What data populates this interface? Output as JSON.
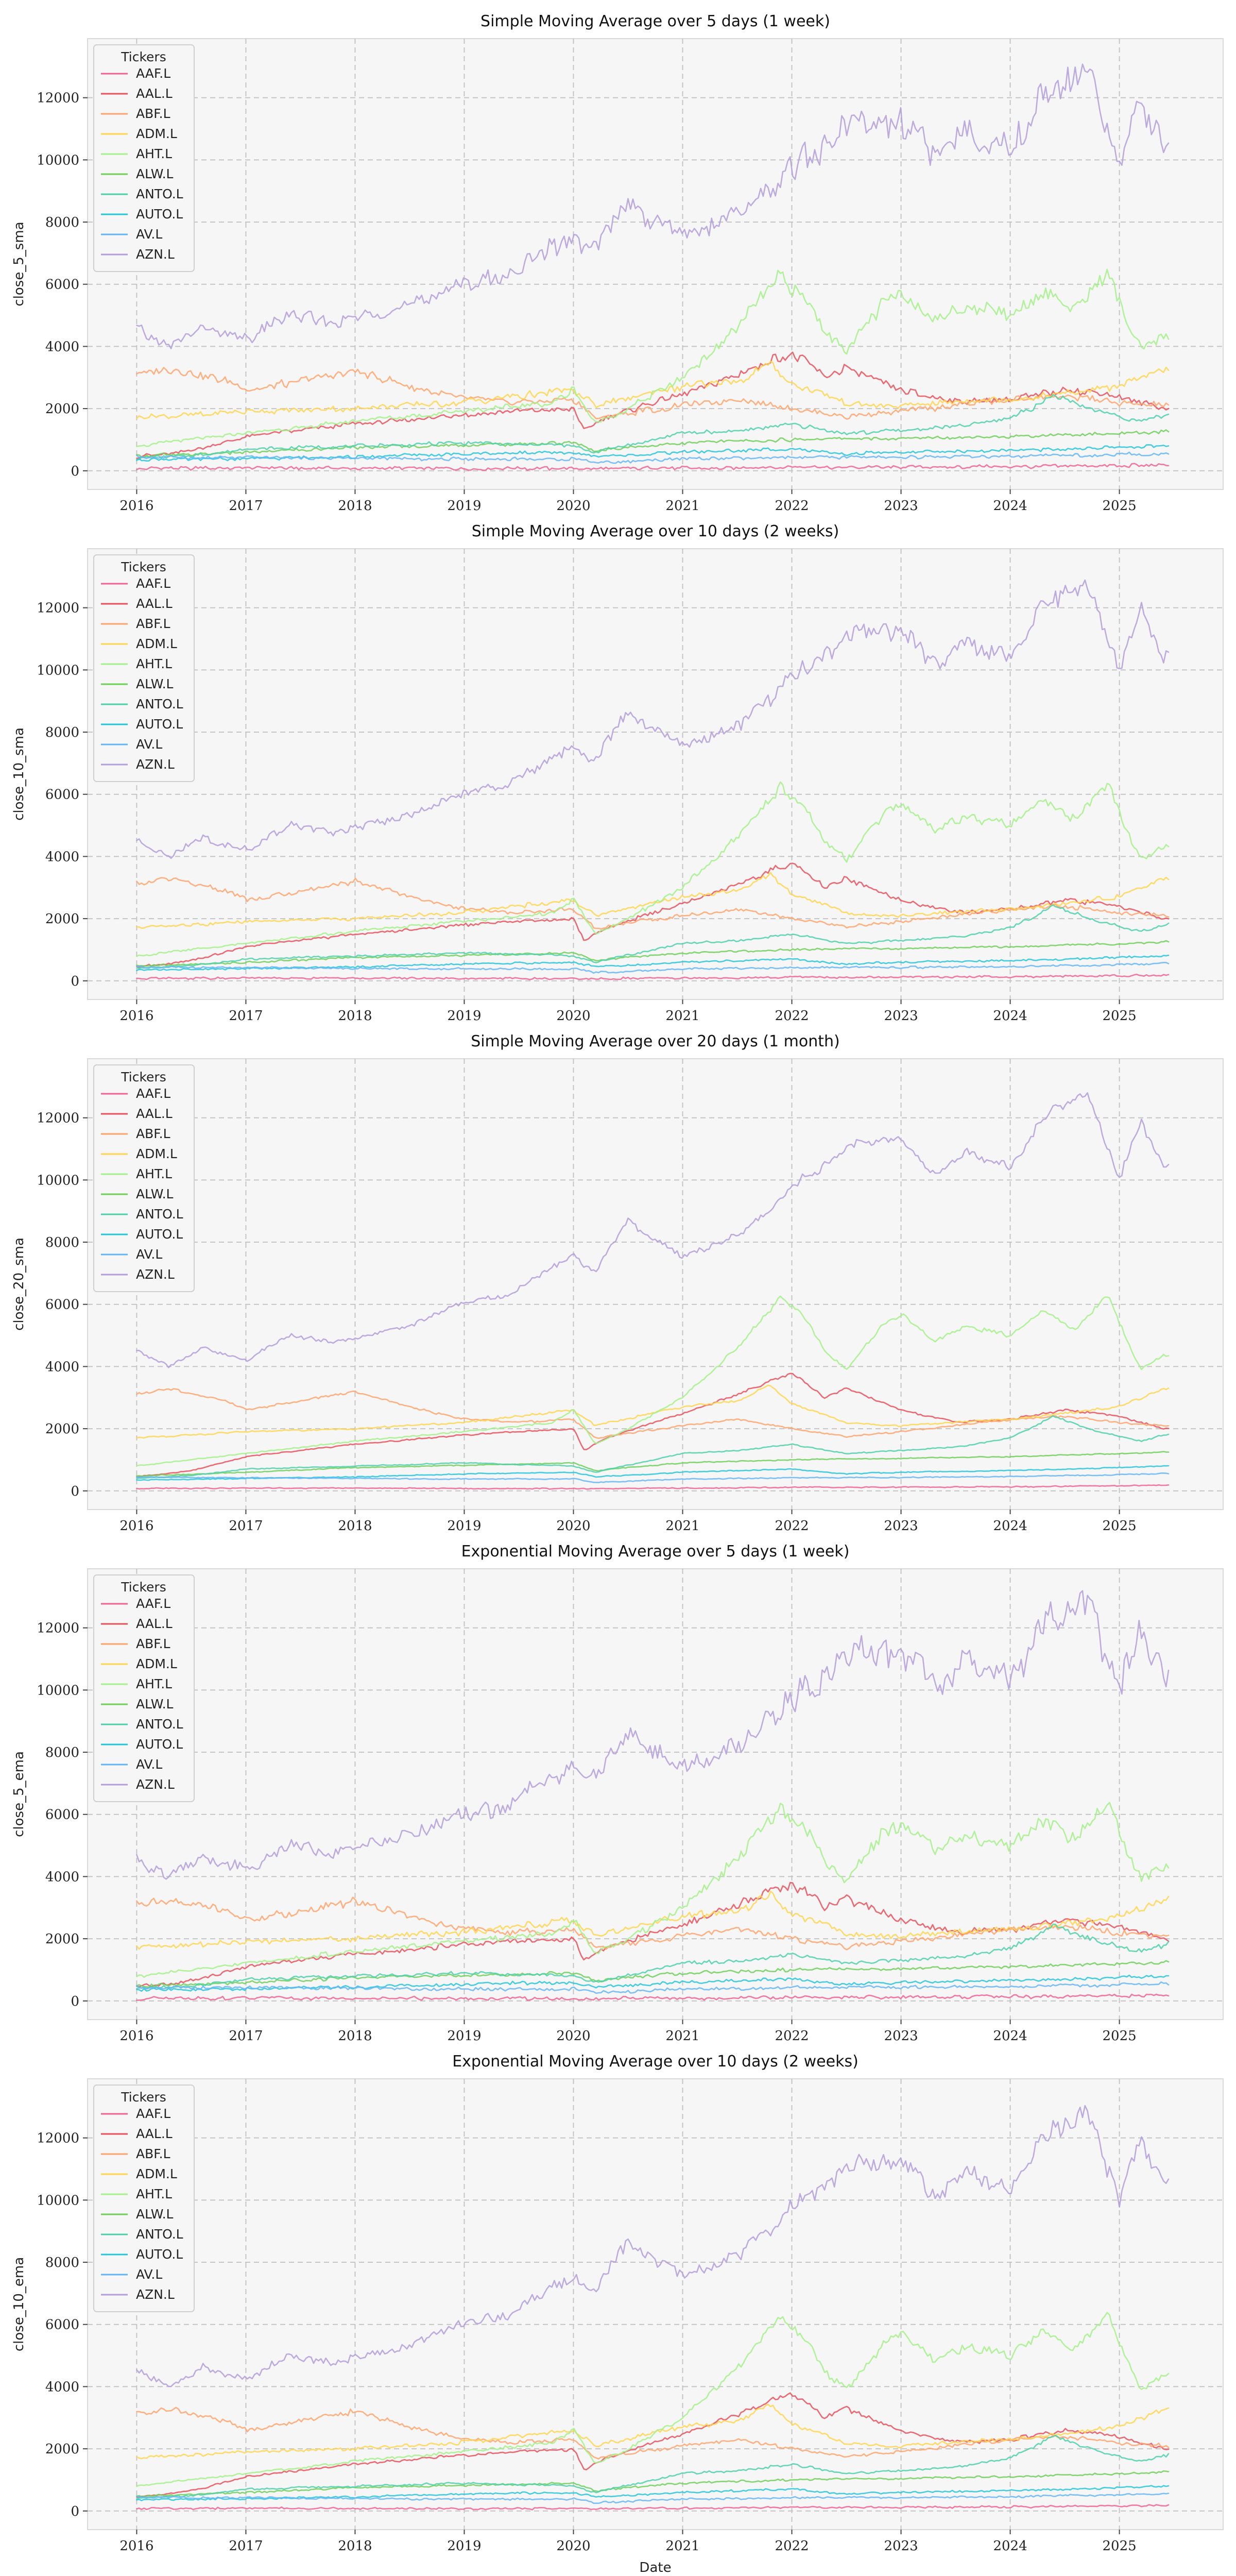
{
  "chart_data": [
    {
      "type": "line",
      "title": "Simple Moving Average over 5 days (1 week)",
      "ylabel": "close_5_sma",
      "xlabel": "",
      "x_ticks": [
        "2016",
        "2017",
        "2018",
        "2019",
        "2020",
        "2021",
        "2022",
        "2023",
        "2024",
        "2025"
      ],
      "y_ticks": [
        "0",
        "2000",
        "4000",
        "6000",
        "8000",
        "10000",
        "12000"
      ],
      "xlim": [
        2015.55,
        2025.95
      ],
      "ylim": [
        -600,
        13900
      ],
      "grid": true,
      "legend_title": "Tickers",
      "legend_position": "upper-left",
      "smoothing": "wiggly"
    },
    {
      "type": "line",
      "title": "Simple Moving Average over 10 days (2 weeks)",
      "ylabel": "close_10_sma",
      "xlabel": "",
      "x_ticks": [
        "2016",
        "2017",
        "2018",
        "2019",
        "2020",
        "2021",
        "2022",
        "2023",
        "2024",
        "2025"
      ],
      "y_ticks": [
        "0",
        "2000",
        "4000",
        "6000",
        "8000",
        "10000",
        "12000"
      ],
      "xlim": [
        2015.55,
        2025.95
      ],
      "ylim": [
        -600,
        13900
      ],
      "grid": true,
      "legend_title": "Tickers",
      "legend_position": "upper-left",
      "smoothing": "medium"
    },
    {
      "type": "line",
      "title": "Simple Moving Average over 20 days (1 month)",
      "ylabel": "close_20_sma",
      "xlabel": "",
      "x_ticks": [
        "2016",
        "2017",
        "2018",
        "2019",
        "2020",
        "2021",
        "2022",
        "2023",
        "2024",
        "2025"
      ],
      "y_ticks": [
        "0",
        "2000",
        "4000",
        "6000",
        "8000",
        "10000",
        "12000"
      ],
      "xlim": [
        2015.55,
        2025.95
      ],
      "ylim": [
        -600,
        13900
      ],
      "grid": true,
      "legend_title": "Tickers",
      "legend_position": "upper-left",
      "smoothing": "smooth"
    },
    {
      "type": "line",
      "title": "Exponential Moving Average over 5 days (1 week)",
      "ylabel": "close_5_ema",
      "xlabel": "",
      "x_ticks": [
        "2016",
        "2017",
        "2018",
        "2019",
        "2020",
        "2021",
        "2022",
        "2023",
        "2024",
        "2025"
      ],
      "y_ticks": [
        "0",
        "2000",
        "4000",
        "6000",
        "8000",
        "10000",
        "12000"
      ],
      "xlim": [
        2015.55,
        2025.95
      ],
      "ylim": [
        -600,
        13900
      ],
      "grid": true,
      "legend_title": "Tickers",
      "legend_position": "upper-left",
      "smoothing": "wiggly"
    },
    {
      "type": "line",
      "title": "Exponential Moving Average over 10 days (2 weeks)",
      "ylabel": "close_10_ema",
      "xlabel": "Date",
      "x_ticks": [
        "2016",
        "2017",
        "2018",
        "2019",
        "2020",
        "2021",
        "2022",
        "2023",
        "2024",
        "2025"
      ],
      "y_ticks": [
        "0",
        "2000",
        "4000",
        "6000",
        "8000",
        "10000",
        "12000"
      ],
      "xlim": [
        2015.55,
        2025.95
      ],
      "ylim": [
        -600,
        13900
      ],
      "grid": true,
      "legend_title": "Tickers",
      "legend_position": "upper-left",
      "smoothing": "medium"
    }
  ],
  "series": [
    {
      "name": "AAF.L",
      "color": "#f06292",
      "x": [
        2016.0,
        2018.0,
        2020.0,
        2022.0,
        2024.0,
        2025.4
      ],
      "y": [
        80,
        90,
        70,
        110,
        130,
        180
      ]
    },
    {
      "name": "AAL.L",
      "color": "#e8505b",
      "x": [
        2016.0,
        2016.5,
        2017.0,
        2018.0,
        2019.0,
        2020.0,
        2020.1,
        2020.3,
        2021.0,
        2021.5,
        2022.0,
        2022.3,
        2022.5,
        2023.0,
        2023.5,
        2024.0,
        2024.5,
        2025.0,
        2025.4
      ],
      "y": [
        450,
        650,
        1100,
        1500,
        1800,
        2000,
        1300,
        1700,
        2500,
        3100,
        3800,
        3000,
        3300,
        2600,
        2200,
        2300,
        2600,
        2400,
        2000
      ]
    },
    {
      "name": "ABF.L",
      "color": "#ffa36c",
      "x": [
        2016.0,
        2016.3,
        2016.8,
        2017.0,
        2017.5,
        2018.0,
        2018.5,
        2019.0,
        2019.5,
        2020.0,
        2020.2,
        2020.6,
        2021.0,
        2021.5,
        2022.0,
        2022.5,
        2023.0,
        2023.5,
        2024.0,
        2024.5,
        2025.0,
        2025.4
      ],
      "y": [
        3100,
        3300,
        2900,
        2600,
        2900,
        3200,
        2700,
        2300,
        2200,
        2300,
        1700,
        1900,
        2100,
        2300,
        2000,
        1750,
        1900,
        2100,
        2300,
        2400,
        2200,
        2100
      ]
    },
    {
      "name": "ADM.L",
      "color": "#ffd54f",
      "x": [
        2016.0,
        2017.0,
        2018.0,
        2019.0,
        2020.0,
        2020.2,
        2020.6,
        2021.0,
        2021.5,
        2021.8,
        2022.0,
        2022.5,
        2023.0,
        2023.5,
        2024.0,
        2024.5,
        2025.0,
        2025.4
      ],
      "y": [
        1700,
        1900,
        2000,
        2200,
        2600,
        2100,
        2400,
        2700,
        2900,
        3400,
        2800,
        2200,
        2100,
        2200,
        2300,
        2500,
        2700,
        3300
      ]
    },
    {
      "name": "AHT.L",
      "color": "#a4f08a",
      "x": [
        2016.0,
        2016.5,
        2017.0,
        2018.0,
        2019.0,
        2019.8,
        2020.0,
        2020.2,
        2020.5,
        2021.0,
        2021.5,
        2021.9,
        2022.1,
        2022.3,
        2022.5,
        2022.8,
        2023.0,
        2023.3,
        2023.6,
        2024.0,
        2024.3,
        2024.6,
        2024.9,
        2025.0,
        2025.2,
        2025.4
      ],
      "y": [
        800,
        1000,
        1200,
        1600,
        1900,
        2200,
        2600,
        1500,
        2000,
        3000,
        4600,
        6200,
        5700,
        4500,
        3900,
        5200,
        5700,
        4800,
        5300,
        5000,
        5800,
        5200,
        6300,
        5400,
        3900,
        4400
      ]
    },
    {
      "name": "ALW.L",
      "color": "#6fcf5a",
      "x": [
        2016.0,
        2017.0,
        2018.0,
        2019.0,
        2020.0,
        2020.2,
        2021.0,
        2022.0,
        2023.0,
        2024.0,
        2025.0,
        2025.4
      ],
      "y": [
        480,
        600,
        750,
        820,
        900,
        650,
        900,
        1000,
        1050,
        1100,
        1200,
        1250
      ]
    },
    {
      "name": "ANTO.L",
      "color": "#4dd0a8",
      "x": [
        2016.0,
        2016.5,
        2017.0,
        2018.0,
        2019.0,
        2020.0,
        2020.2,
        2020.6,
        2021.0,
        2021.5,
        2022.0,
        2022.5,
        2023.0,
        2023.5,
        2024.0,
        2024.4,
        2024.8,
        2025.2,
        2025.4
      ],
      "y": [
        400,
        500,
        700,
        800,
        900,
        800,
        600,
        900,
        1200,
        1300,
        1500,
        1200,
        1300,
        1400,
        1700,
        2400,
        1900,
        1600,
        1800
      ]
    },
    {
      "name": "AUTO.L",
      "color": "#26c6da",
      "x": [
        2016.0,
        2017.0,
        2018.0,
        2019.0,
        2020.0,
        2020.2,
        2021.0,
        2022.0,
        2022.5,
        2023.0,
        2024.0,
        2025.0,
        2025.4
      ],
      "y": [
        350,
        400,
        450,
        550,
        600,
        450,
        600,
        700,
        550,
        600,
        650,
        750,
        800
      ]
    },
    {
      "name": "AV.L",
      "color": "#64b5f6",
      "x": [
        2016.0,
        2017.0,
        2018.0,
        2019.0,
        2020.0,
        2020.2,
        2021.0,
        2022.0,
        2023.0,
        2024.0,
        2025.0,
        2025.4
      ],
      "y": [
        450,
        420,
        400,
        380,
        390,
        270,
        380,
        420,
        430,
        460,
        520,
        560
      ]
    },
    {
      "name": "AZN.L",
      "color": "#b39ddb",
      "x": [
        2016.0,
        2016.3,
        2016.6,
        2017.0,
        2017.4,
        2017.8,
        2018.0,
        2018.5,
        2019.0,
        2019.4,
        2019.8,
        2020.0,
        2020.2,
        2020.5,
        2021.0,
        2021.5,
        2021.8,
        2022.0,
        2022.3,
        2022.6,
        2023.0,
        2023.3,
        2023.6,
        2024.0,
        2024.3,
        2024.7,
        2024.9,
        2025.0,
        2025.2,
        2025.4
      ],
      "y": [
        4500,
        4000,
        4600,
        4200,
        5000,
        4800,
        4900,
        5300,
        6100,
        6300,
        7200,
        7600,
        7000,
        8700,
        7500,
        8200,
        9000,
        9800,
        10500,
        11200,
        11300,
        10200,
        10900,
        10400,
        12000,
        12800,
        11000,
        10100,
        11900,
        10400
      ]
    }
  ]
}
